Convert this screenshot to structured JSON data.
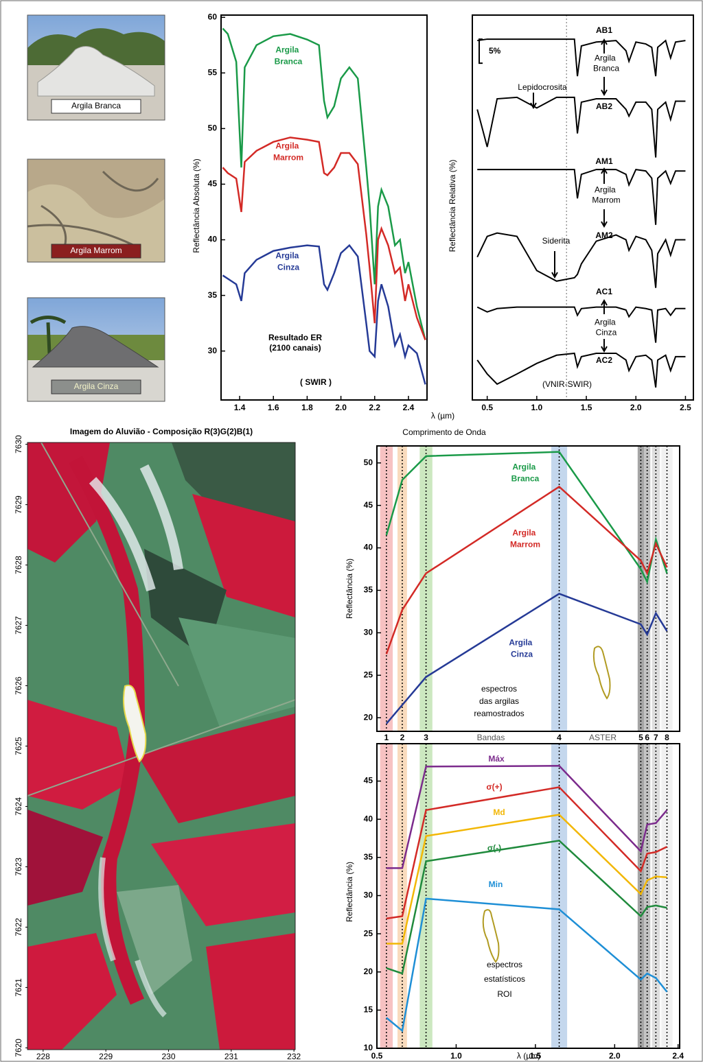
{
  "photos": [
    {
      "label": "Argila Branca"
    },
    {
      "label": "Argila Marrom"
    },
    {
      "label": "Argila Cinza"
    }
  ],
  "chart_data": [
    {
      "type": "line",
      "y_label": "Reflectância Absoluta (%)",
      "x_label": "λ (µm)",
      "xlim": [
        1.29,
        2.51
      ],
      "ylim": [
        25.6,
        60.2
      ],
      "xticks": [
        1.4,
        1.6,
        1.8,
        {
          "value": 2,
          "label": "2.0"
        },
        2.2,
        2.4
      ],
      "yticks": [
        30,
        35,
        40,
        45,
        50,
        55,
        60
      ],
      "x": [
        1.3,
        1.33,
        1.38,
        1.41,
        1.43,
        1.5,
        1.6,
        1.7,
        1.8,
        1.87,
        1.9,
        1.92,
        1.96,
        2.0,
        2.05,
        2.1,
        2.15,
        2.17,
        2.2,
        2.22,
        2.24,
        2.28,
        2.32,
        2.35,
        2.38,
        2.4,
        2.45,
        2.5
      ],
      "series": [
        {
          "name": "Argila Branca",
          "color": "#1a9a48",
          "values": [
            59,
            58.5,
            56,
            46.5,
            55.5,
            57.5,
            58.3,
            58.5,
            58,
            57.5,
            52.5,
            51,
            52,
            54.5,
            55.5,
            54.5,
            46.5,
            43,
            36,
            43,
            44.5,
            43,
            39.5,
            40,
            37,
            38,
            34,
            31
          ]
        },
        {
          "name": "Argila Marrom",
          "color": "#d32a26",
          "values": [
            46.5,
            46,
            45.5,
            42.5,
            47,
            48,
            48.8,
            49.2,
            49,
            48.8,
            46,
            45.8,
            46.5,
            47.8,
            47.8,
            46.8,
            40.5,
            37.5,
            32.5,
            40,
            41,
            39.5,
            37,
            37.5,
            34.5,
            36,
            33,
            31
          ]
        },
        {
          "name": "Argila Cinza",
          "color": "#253a96",
          "values": [
            36.8,
            36.5,
            36,
            34.5,
            37,
            38.2,
            39,
            39.3,
            39.5,
            39.4,
            36,
            35.5,
            37,
            38.8,
            39.5,
            38.5,
            32.5,
            30,
            29.5,
            34.5,
            36,
            34,
            30.5,
            31.5,
            29.5,
            30.5,
            29.8,
            27
          ]
        }
      ],
      "annotations": [
        "Resultado ER",
        "(2100 canais)",
        "( SWIR )"
      ]
    },
    {
      "type": "line",
      "y_label": "Reflectância Relativa (%)",
      "xlim": [
        0.35,
        2.58
      ],
      "ylim": [
        0,
        80
      ],
      "xticks": [
        0.5,
        {
          "value": 1,
          "label": "1.0"
        },
        1.5,
        {
          "value": 2,
          "label": "2.0"
        },
        2.5
      ],
      "x": [
        0.4,
        0.5,
        0.6,
        0.8,
        1.0,
        1.2,
        1.38,
        1.41,
        1.45,
        1.6,
        1.8,
        1.9,
        1.93,
        2.0,
        2.1,
        2.16,
        2.2,
        2.22,
        2.3,
        2.35,
        2.4,
        2.5
      ],
      "reference_x": 1.3,
      "scale_bar": {
        "value": 5,
        "label": "5%"
      },
      "series": [
        {
          "name": "AB1",
          "color": "#000000",
          "values": [
            74.7,
            75,
            75,
            75,
            75,
            75,
            75,
            67.3,
            73.6,
            74.4,
            74.7,
            72.6,
            70.4,
            74.4,
            74,
            73.3,
            67.3,
            73.3,
            74.7,
            71.1,
            74.4,
            74.7
          ]
        },
        {
          "name": "AB2",
          "color": "#000000",
          "values": [
            60.4,
            52.6,
            62.6,
            62.9,
            60.7,
            62.9,
            62.9,
            55.4,
            61.9,
            62.6,
            62.6,
            60.4,
            59,
            61.9,
            61.9,
            60.4,
            50.4,
            60.4,
            61.9,
            58.3,
            62.1,
            62.1
          ]
        },
        {
          "name": "AM1",
          "color": "#000000",
          "values": [
            47.9,
            47.9,
            47.9,
            47.9,
            47.9,
            47.9,
            47.9,
            41.9,
            46.9,
            47.9,
            47.9,
            46.9,
            44.7,
            47.9,
            47.6,
            46.1,
            36.4,
            46.1,
            47.6,
            45,
            47.6,
            47.6
          ]
        },
        {
          "name": "AM2",
          "color": "#000000",
          "values": [
            29.7,
            34,
            34.7,
            34,
            26.9,
            24.7,
            25.4,
            26.1,
            28.3,
            33,
            34.3,
            33.3,
            31.1,
            34,
            33.3,
            31.1,
            23.3,
            30.4,
            33.3,
            30.1,
            33.3,
            33.3
          ]
        },
        {
          "name": "AC1",
          "color": "#000000",
          "values": [
            19.3,
            18.3,
            19,
            19.3,
            19.3,
            19.3,
            19.3,
            17.6,
            19,
            19.3,
            19.3,
            18.7,
            17.3,
            19.3,
            19,
            18.7,
            11.9,
            18.7,
            19,
            17.6,
            19,
            19
          ]
        },
        {
          "name": "AC2",
          "color": "#000000",
          "values": [
            8.3,
            5.4,
            3.3,
            5.4,
            7.6,
            9.3,
            9.7,
            6.9,
            9,
            9.7,
            9.7,
            8.3,
            6.1,
            9,
            9.3,
            8.3,
            2.6,
            8.3,
            9.3,
            6.1,
            9,
            9
          ]
        }
      ],
      "annotations": [
        "Lepidocrosita",
        "Siderita",
        "Argila Branca",
        "Argila Marrom",
        "Argila Cinza",
        "(VNIR-SWIR)"
      ]
    },
    {
      "type": "line",
      "title": "Comprimento de Onda",
      "y_label": "Reflectância (%)",
      "xlim": [
        0.5,
        2.41
      ],
      "ylim": [
        18.4,
        52
      ],
      "yticks": [
        20,
        25,
        30,
        35,
        40,
        45,
        50
      ],
      "x": [
        0.56,
        0.66,
        0.81,
        1.65,
        2.165,
        2.205,
        2.26,
        2.33
      ],
      "bands": [
        "1",
        "2",
        "3",
        "4",
        "5",
        "6",
        "7",
        "8"
      ],
      "band_label": "Bandas",
      "sensor_label": "ASTER",
      "series": [
        {
          "name": "Argila Branca",
          "color": "#1a9a48",
          "values": [
            41.5,
            48,
            50.8,
            51.3,
            37.5,
            36,
            41,
            37
          ]
        },
        {
          "name": "Argila Marrom",
          "color": "#d32a26",
          "values": [
            27.5,
            32.7,
            37,
            47.2,
            38.5,
            37,
            40.5,
            37.7
          ]
        },
        {
          "name": "Argila Cinza",
          "color": "#253a96",
          "values": [
            19.3,
            21.5,
            24.8,
            34.6,
            31,
            29.8,
            32.3,
            30.2
          ]
        }
      ],
      "annotations": [
        "espectros",
        "das argilas",
        "reamostrados"
      ]
    },
    {
      "type": "line",
      "x_label": "λ (µm)",
      "y_label": "Reflectância (%)",
      "xlim": [
        0.5,
        2.41
      ],
      "ylim": [
        10,
        49.9
      ],
      "xticks": [
        0.5,
        {
          "value": 1,
          "label": "1.0"
        },
        1.5,
        {
          "value": 2,
          "label": "2.0"
        },
        2.4
      ],
      "yticks": [
        10,
        15,
        20,
        25,
        30,
        35,
        40,
        45
      ],
      "x": [
        0.56,
        0.66,
        0.81,
        1.65,
        2.165,
        2.205,
        2.26,
        2.33
      ],
      "series": [
        {
          "name": "Máx",
          "color": "#7b2a8c",
          "values": [
            33.6,
            33.6,
            46.9,
            47,
            35.8,
            39.3,
            39.5,
            41.2
          ]
        },
        {
          "name": "σ(+)",
          "color": "#d32a26",
          "values": [
            27,
            27.3,
            41.2,
            44.2,
            33.2,
            35.5,
            35.7,
            36.4
          ]
        },
        {
          "name": "Md",
          "color": "#f2b705",
          "values": [
            23.7,
            23.7,
            37.8,
            40.6,
            30.2,
            32,
            32.5,
            32.4
          ]
        },
        {
          "name": "σ(-)",
          "color": "#1f8a3c",
          "values": [
            20.5,
            19.8,
            34.5,
            37.2,
            27.3,
            28.5,
            28.7,
            28.4
          ]
        },
        {
          "name": "Min",
          "color": "#1e8fd6",
          "values": [
            14,
            12.3,
            29.6,
            28.2,
            19,
            19.8,
            19.2,
            17.4
          ]
        }
      ],
      "annotations": [
        "espectros",
        "estatísticos",
        "ROI"
      ]
    },
    {
      "type": "image",
      "title": "Imagem do Aluvião - Composição R(3)G(2)B(1)",
      "xlim": [
        227.75,
        232.02
      ],
      "ylim": [
        7619.97,
        7630.03
      ],
      "xticks": [
        228,
        229,
        230,
        231,
        232
      ],
      "yticks": [
        7620,
        7621,
        7622,
        7623,
        7624,
        7625,
        7626,
        7627,
        7628,
        7629,
        7630
      ]
    }
  ]
}
